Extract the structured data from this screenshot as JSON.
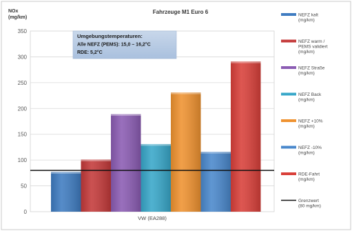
{
  "chart_data": {
    "type": "bar",
    "title": "Fahrzeuge M1 Euro 6",
    "ylabel_lines": [
      "NOx",
      "(mg/km)"
    ],
    "ylim": [
      0,
      350
    ],
    "yticks": [
      0,
      50,
      100,
      150,
      200,
      250,
      300,
      350
    ],
    "grid": true,
    "category": "VW (EA288)",
    "annotation_lines": [
      "Umgebungstemperaturen:",
      "Alle NEFZ (PEMS): 15,0 – 16,2°C",
      "RDE: 5,2°C"
    ],
    "series": [
      {
        "name": "NEFZ kalt (mg/km)",
        "legend_lines": [
          "NEFZ kalt",
          "(mg/km)"
        ],
        "value": 77,
        "color": "#3f7cc1"
      },
      {
        "name": "NEFZ warm / PEMS validiert (mg/km)",
        "legend_lines": [
          "NEFZ warm /",
          "PEMS validiert",
          "(mg/km)"
        ],
        "value": 101,
        "color": "#c43a3a"
      },
      {
        "name": "NEFZ Straße (mg/km)",
        "legend_lines": [
          "NEFZ Straße",
          "(mg/km)"
        ],
        "value": 189,
        "color": "#8b5cb3"
      },
      {
        "name": "NEFZ Back (mg/km)",
        "legend_lines": [
          "NEFZ Back",
          "(mg/km)"
        ],
        "value": 131,
        "color": "#38a7c9"
      },
      {
        "name": "NEFZ +10% (mg/km)",
        "legend_lines": [
          "NEFZ +10%",
          "(mg/km)"
        ],
        "value": 231,
        "color": "#ef9230"
      },
      {
        "name": "NEFZ -10% (mg/km)",
        "legend_lines": [
          "NEFZ -10%",
          "(mg/km)"
        ],
        "value": 116,
        "color": "#4a88cc"
      },
      {
        "name": "RDE-Fahrt (mg/km)",
        "legend_lines": [
          "RDE-Fahrt",
          "(mg/km)"
        ],
        "value": 291,
        "color": "#d9403a"
      }
    ],
    "threshold": {
      "name": "Grenzwert (80 mg/km)",
      "legend_lines": [
        "Grenzwert",
        "(80 mg/km)"
      ],
      "value": 80,
      "color": "#111111"
    },
    "legend_position": "right"
  }
}
